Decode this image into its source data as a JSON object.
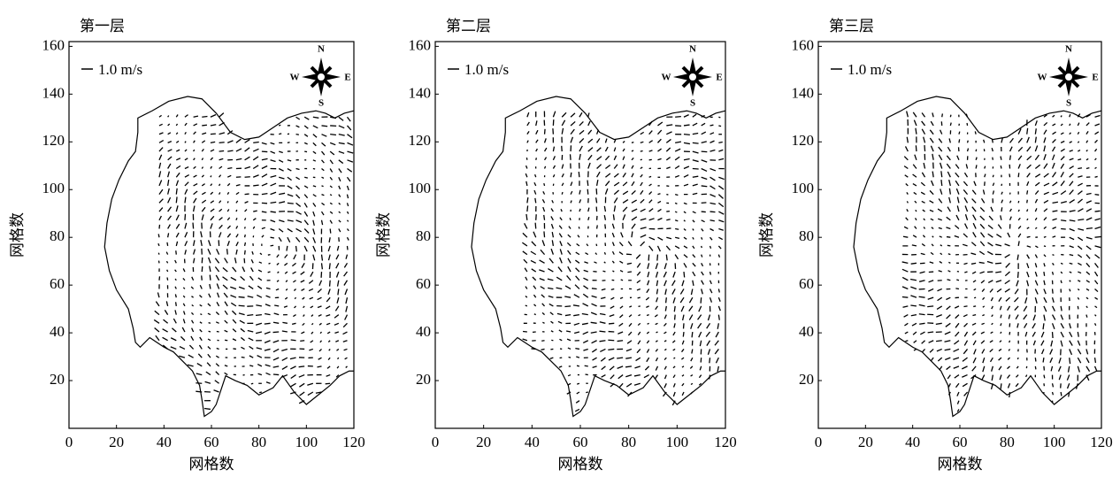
{
  "chart_data": [
    {
      "type": "quiver",
      "title": "第一层",
      "xlabel": "网格数",
      "ylabel": "网格数",
      "scale_label": "1.0 m/s",
      "compass_labels": [
        "N",
        "E",
        "S",
        "W"
      ],
      "xlim": [
        0,
        120
      ],
      "ylim": [
        0,
        162
      ],
      "xticks": [
        0,
        20,
        40,
        60,
        80,
        100,
        120
      ],
      "yticks": [
        20,
        40,
        60,
        80,
        100,
        120,
        140,
        160
      ]
    },
    {
      "type": "quiver",
      "title": "第二层",
      "xlabel": "网格数",
      "ylabel": "网格数",
      "scale_label": "1.0 m/s",
      "compass_labels": [
        "N",
        "E",
        "S",
        "W"
      ],
      "xlim": [
        0,
        120
      ],
      "ylim": [
        0,
        162
      ],
      "xticks": [
        0,
        20,
        40,
        60,
        80,
        100,
        120
      ],
      "yticks": [
        20,
        40,
        60,
        80,
        100,
        120,
        140,
        160
      ]
    },
    {
      "type": "quiver",
      "title": "第三层",
      "xlabel": "网格数",
      "ylabel": "网格数",
      "scale_label": "1.0 m/s",
      "compass_labels": [
        "N",
        "E",
        "S",
        "W"
      ],
      "xlim": [
        0,
        120
      ],
      "ylim": [
        0,
        162
      ],
      "xticks": [
        0,
        20,
        40,
        60,
        80,
        100,
        120
      ],
      "yticks": [
        20,
        40,
        60,
        80,
        100,
        120,
        140,
        160
      ]
    }
  ]
}
